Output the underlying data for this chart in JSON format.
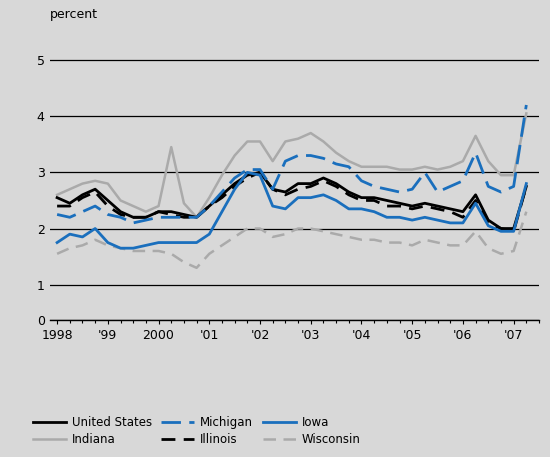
{
  "background_color": "#d8d8d8",
  "ylabel": "percent",
  "xlim": [
    1997.85,
    2007.5
  ],
  "ylim_main": [
    0.8,
    5.5
  ],
  "ylim_zero": [
    0,
    0.5
  ],
  "yticks_main": [
    1,
    2,
    3,
    4,
    5
  ],
  "yticks_zero": [
    0
  ],
  "x": [
    1998.0,
    1998.25,
    1998.5,
    1998.75,
    1999.0,
    1999.25,
    1999.5,
    1999.75,
    2000.0,
    2000.25,
    2000.5,
    2000.75,
    2001.0,
    2001.25,
    2001.5,
    2001.75,
    2002.0,
    2002.25,
    2002.5,
    2002.75,
    2003.0,
    2003.25,
    2003.5,
    2003.75,
    2004.0,
    2004.25,
    2004.5,
    2004.75,
    2005.0,
    2005.25,
    2005.5,
    2005.75,
    2006.0,
    2006.25,
    2006.5,
    2006.75,
    2007.0,
    2007.25
  ],
  "united_states": [
    2.55,
    2.45,
    2.6,
    2.7,
    2.5,
    2.3,
    2.2,
    2.2,
    2.3,
    2.3,
    2.25,
    2.2,
    2.4,
    2.6,
    2.8,
    2.95,
    3.0,
    2.7,
    2.65,
    2.8,
    2.8,
    2.9,
    2.8,
    2.65,
    2.55,
    2.55,
    2.5,
    2.45,
    2.4,
    2.45,
    2.4,
    2.35,
    2.3,
    2.6,
    2.15,
    2.0,
    2.0,
    2.75
  ],
  "illinois": [
    2.4,
    2.4,
    2.55,
    2.65,
    2.4,
    2.25,
    2.2,
    2.2,
    2.3,
    2.25,
    2.2,
    2.2,
    2.4,
    2.55,
    2.75,
    2.9,
    3.0,
    2.7,
    2.6,
    2.7,
    2.75,
    2.85,
    2.75,
    2.6,
    2.5,
    2.5,
    2.4,
    2.4,
    2.35,
    2.4,
    2.35,
    2.3,
    2.2,
    2.5,
    2.1,
    2.0,
    1.95,
    2.75
  ],
  "indiana": [
    2.6,
    2.7,
    2.8,
    2.85,
    2.8,
    2.5,
    2.4,
    2.3,
    2.4,
    3.45,
    2.45,
    2.2,
    2.55,
    2.95,
    3.3,
    3.55,
    3.55,
    3.2,
    3.55,
    3.6,
    3.7,
    3.55,
    3.35,
    3.2,
    3.1,
    3.1,
    3.1,
    3.05,
    3.05,
    3.1,
    3.05,
    3.1,
    3.2,
    3.65,
    3.2,
    2.95,
    2.95,
    4.05
  ],
  "iowa": [
    1.75,
    1.9,
    1.85,
    2.0,
    1.75,
    1.65,
    1.65,
    1.7,
    1.75,
    1.75,
    1.75,
    1.75,
    1.9,
    2.3,
    2.7,
    3.0,
    2.95,
    2.4,
    2.35,
    2.55,
    2.55,
    2.6,
    2.5,
    2.35,
    2.35,
    2.3,
    2.2,
    2.2,
    2.15,
    2.2,
    2.15,
    2.1,
    2.1,
    2.45,
    2.05,
    1.95,
    1.95,
    2.8
  ],
  "michigan": [
    2.25,
    2.2,
    2.3,
    2.4,
    2.25,
    2.2,
    2.1,
    2.15,
    2.2,
    2.2,
    2.2,
    2.2,
    2.4,
    2.65,
    2.9,
    3.05,
    3.05,
    2.7,
    3.2,
    3.3,
    3.3,
    3.25,
    3.15,
    3.1,
    2.85,
    2.75,
    2.7,
    2.65,
    2.7,
    3.0,
    2.65,
    2.75,
    2.85,
    3.35,
    2.75,
    2.65,
    2.75,
    4.2
  ],
  "wisconsin": [
    1.55,
    1.65,
    1.7,
    1.8,
    1.7,
    1.65,
    1.6,
    1.6,
    1.6,
    1.55,
    1.4,
    1.3,
    1.55,
    1.7,
    1.85,
    2.0,
    2.0,
    1.85,
    1.9,
    2.0,
    2.0,
    1.95,
    1.9,
    1.85,
    1.8,
    1.8,
    1.75,
    1.75,
    1.7,
    1.8,
    1.75,
    1.7,
    1.7,
    1.95,
    1.65,
    1.55,
    1.6,
    2.3
  ],
  "xtick_positions": [
    1998,
    1999,
    2000,
    2001,
    2002,
    2003,
    2004,
    2005,
    2006,
    2007
  ],
  "xtick_labels": [
    "1998",
    "'99",
    "2000",
    "'01",
    "'02",
    "'03",
    "'04",
    "'05",
    "'06",
    "'07"
  ],
  "line_colors": {
    "united_states": "#000000",
    "illinois": "#000000",
    "indiana": "#aaaaaa",
    "iowa": "#1a6fbd",
    "michigan": "#1a6fbd",
    "wisconsin": "#aaaaaa"
  },
  "line_styles": {
    "united_states": "-",
    "illinois": "--",
    "indiana": "-",
    "iowa": "-",
    "michigan": "--",
    "wisconsin": "--"
  },
  "line_widths": {
    "united_states": 2.0,
    "illinois": 2.0,
    "indiana": 1.8,
    "iowa": 2.0,
    "michigan": 2.0,
    "wisconsin": 1.8
  }
}
